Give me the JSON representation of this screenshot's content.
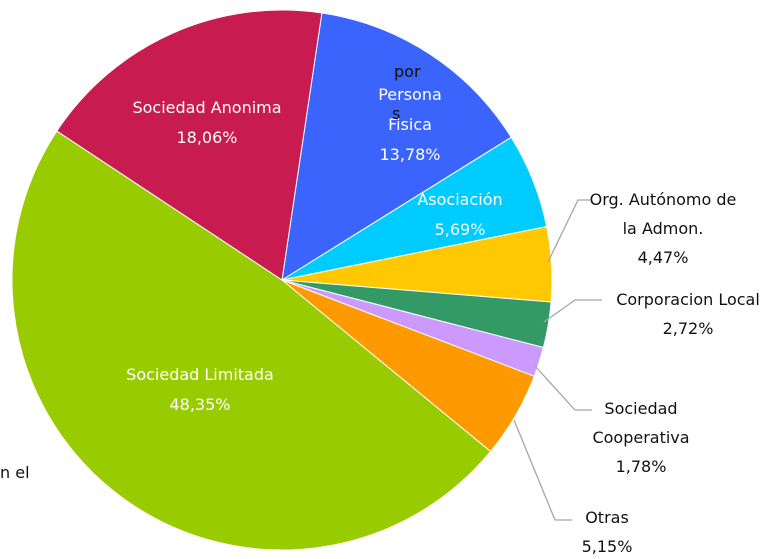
{
  "chart_data": {
    "type": "pie",
    "categories": [
      "Persona Fisica",
      "Asociación",
      "Org. Autónomo de la Admon.",
      "Corporacion Local",
      "Sociedad Cooperativa",
      "Otras",
      "Sociedad Limitada",
      "Sociedad Anonima"
    ],
    "values": [
      13.78,
      5.69,
      4.47,
      2.72,
      1.78,
      5.15,
      48.35,
      18.06
    ],
    "value_labels": [
      "13,78%",
      "5,69%",
      "4,47%",
      "2,72%",
      "1,78%",
      "5,15%",
      "48,35%",
      "18,06%"
    ],
    "colors": [
      "#3a64fb",
      "#00ccff",
      "#ffc800",
      "#339966",
      "#cc99ff",
      "#ff9900",
      "#99cc00",
      "#c81b4f"
    ],
    "annotations": [
      "por",
      "s",
      "n el"
    ]
  }
}
